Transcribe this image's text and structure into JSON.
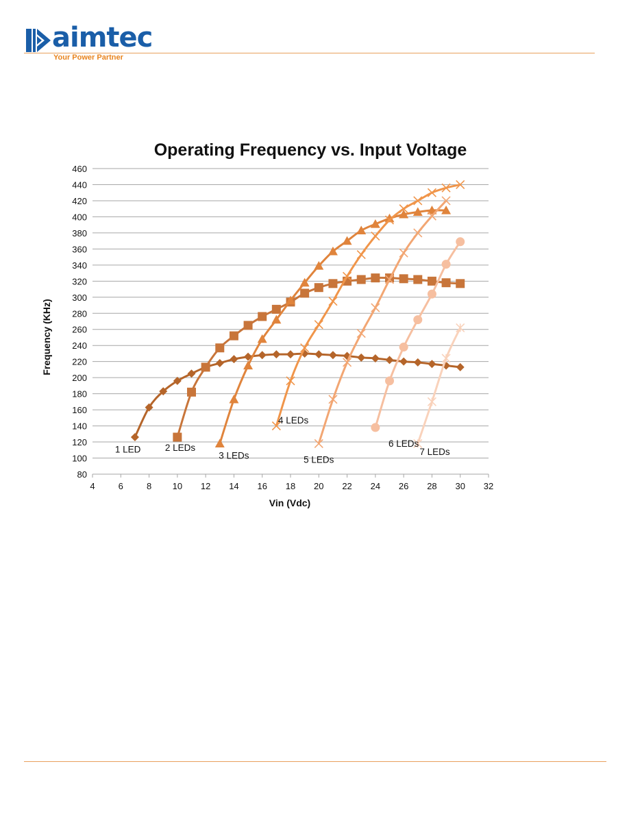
{
  "brand": {
    "name": "aimtec",
    "tagline": "Your Power Partner",
    "colors": {
      "logo_blue": "#1a5ea8",
      "logo_orange": "#e8841e",
      "rule": "#e8a05c"
    }
  },
  "chart_data": {
    "type": "line",
    "title": "Operating Frequency vs. Input Voltage",
    "xlabel": "Vin (Vdc)",
    "ylabel": "Frequency (KHz)",
    "xlim": [
      4,
      32
    ],
    "ylim": [
      80,
      460
    ],
    "xticks": [
      4,
      6,
      8,
      10,
      12,
      14,
      16,
      18,
      20,
      22,
      24,
      26,
      28,
      30,
      32
    ],
    "yticks": [
      80,
      100,
      120,
      140,
      160,
      180,
      200,
      220,
      240,
      260,
      280,
      300,
      320,
      340,
      360,
      380,
      400,
      420,
      440,
      460
    ],
    "grid": "horizontal",
    "legend": "none",
    "series": [
      {
        "name": "1 LED",
        "color": "#b5652a",
        "marker": "diamond",
        "x": [
          7,
          8,
          9,
          10,
          11,
          12,
          13,
          14,
          15,
          16,
          17,
          18,
          19,
          20,
          21,
          22,
          23,
          24,
          25,
          26,
          27,
          28,
          29,
          30
        ],
        "y": [
          126,
          163,
          183,
          196,
          205,
          213,
          218,
          223,
          226,
          228,
          229,
          229,
          230,
          229,
          228,
          227,
          225,
          224,
          222,
          220,
          219,
          217,
          215,
          213
        ]
      },
      {
        "name": "2 LEDs",
        "color": "#c8753a",
        "marker": "square",
        "x": [
          10,
          11,
          12,
          13,
          14,
          15,
          16,
          17,
          18,
          19,
          20,
          21,
          22,
          23,
          24,
          25,
          26,
          27,
          28,
          29,
          30
        ],
        "y": [
          126,
          182,
          213,
          237,
          252,
          265,
          276,
          285,
          294,
          305,
          312,
          317,
          320,
          322,
          324,
          324,
          323,
          322,
          320,
          318,
          317
        ]
      },
      {
        "name": "3 LEDs",
        "color": "#e0843c",
        "marker": "triangle",
        "x": [
          13,
          14,
          15,
          16,
          17,
          18,
          19,
          20,
          21,
          22,
          23,
          24,
          25,
          26,
          27,
          28,
          29
        ],
        "y": [
          118,
          173,
          215,
          248,
          272,
          296,
          318,
          339,
          357,
          370,
          383,
          391,
          398,
          403,
          406,
          408,
          408
        ]
      },
      {
        "name": "4 LEDs",
        "color": "#f0954a",
        "marker": "x",
        "x": [
          17,
          18,
          19,
          20,
          21,
          22,
          23,
          24,
          25,
          26,
          27,
          28,
          29,
          30
        ],
        "y": [
          140,
          196,
          237,
          266,
          295,
          326,
          353,
          376,
          396,
          410,
          420,
          430,
          436,
          440
        ]
      },
      {
        "name": "5 LEDs",
        "color": "#f2a673",
        "marker": "x",
        "x": [
          20,
          21,
          22,
          23,
          24,
          25,
          26,
          27,
          28,
          29
        ],
        "y": [
          118,
          173,
          219,
          255,
          287,
          322,
          355,
          380,
          401,
          420
        ]
      },
      {
        "name": "6 LEDs",
        "color": "#f6bfa0",
        "marker": "circle",
        "x": [
          24,
          25,
          26,
          27,
          28,
          29,
          30
        ],
        "y": [
          138,
          196,
          238,
          272,
          304,
          341,
          369
        ]
      },
      {
        "name": "7 LEDs",
        "color": "#f9d2bb",
        "marker": "star",
        "x": [
          27,
          28,
          29,
          30
        ],
        "y": [
          118,
          170,
          224,
          262
        ]
      }
    ],
    "annotations": [
      {
        "text": "1 LED",
        "x": 6.5,
        "y": 107
      },
      {
        "text": "2 LEDs",
        "x": 10.2,
        "y": 109
      },
      {
        "text": "3 LEDs",
        "x": 14.0,
        "y": 99
      },
      {
        "text": "4 LEDs",
        "x": 18.2,
        "y": 143
      },
      {
        "text": "5 LEDs",
        "x": 20.0,
        "y": 94
      },
      {
        "text": "6 LEDs",
        "x": 26.0,
        "y": 114
      },
      {
        "text": "7 LEDs",
        "x": 28.2,
        "y": 104
      }
    ]
  }
}
